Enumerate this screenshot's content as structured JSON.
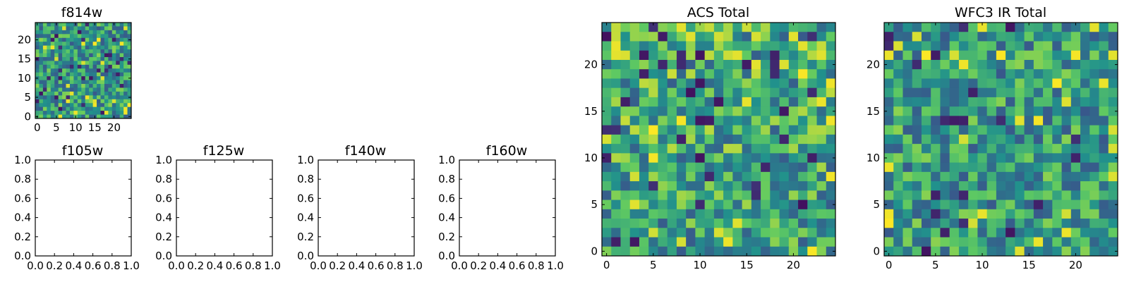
{
  "figure": {
    "panels": [
      {
        "id": "f814w",
        "title": "f814w"
      },
      {
        "id": "f105w",
        "title": "f105w"
      },
      {
        "id": "f125w",
        "title": "f125w"
      },
      {
        "id": "f140w",
        "title": "f140w"
      },
      {
        "id": "f160w",
        "title": "f160w"
      },
      {
        "id": "acs",
        "title": "ACS Total"
      },
      {
        "id": "wfc3",
        "title": "WFC3 IR Total"
      }
    ]
  },
  "chart_data": [
    {
      "type": "heatmap",
      "title": "f814w",
      "grid_size": 25,
      "xlim": [
        -0.5,
        24.5
      ],
      "ylim": [
        -0.5,
        24.5
      ],
      "xticks": [
        "0",
        "5",
        "10",
        "15",
        "20"
      ],
      "yticks": [
        "0",
        "5",
        "10",
        "15",
        "20"
      ],
      "colormap": "viridis",
      "values_note": "random noise"
    },
    {
      "type": "empty",
      "title": "f105w",
      "xlim": [
        0,
        1
      ],
      "ylim": [
        0,
        1
      ],
      "xticks": [
        "0.0",
        "0.2",
        "0.4",
        "0.6",
        "0.8",
        "1.0"
      ],
      "yticks": [
        "0.0",
        "0.2",
        "0.4",
        "0.6",
        "0.8",
        "1.0"
      ]
    },
    {
      "type": "empty",
      "title": "f125w",
      "xlim": [
        0,
        1
      ],
      "ylim": [
        0,
        1
      ],
      "xticks": [
        "0.0",
        "0.2",
        "0.4",
        "0.6",
        "0.8",
        "1.0"
      ],
      "yticks": [
        "0.0",
        "0.2",
        "0.4",
        "0.6",
        "0.8",
        "1.0"
      ]
    },
    {
      "type": "empty",
      "title": "f140w",
      "xlim": [
        0,
        1
      ],
      "ylim": [
        0,
        1
      ],
      "xticks": [
        "0.0",
        "0.2",
        "0.4",
        "0.6",
        "0.8",
        "1.0"
      ],
      "yticks": [
        "0.0",
        "0.2",
        "0.4",
        "0.6",
        "0.8",
        "1.0"
      ]
    },
    {
      "type": "empty",
      "title": "f160w",
      "xlim": [
        0,
        1
      ],
      "ylim": [
        0,
        1
      ],
      "xticks": [
        "0.0",
        "0.2",
        "0.4",
        "0.6",
        "0.8",
        "1.0"
      ],
      "yticks": [
        "0.0",
        "0.2",
        "0.4",
        "0.6",
        "0.8",
        "1.0"
      ]
    },
    {
      "type": "heatmap",
      "title": "ACS Total",
      "grid_size": 25,
      "xlim": [
        -0.5,
        24.5
      ],
      "ylim": [
        -0.5,
        24.5
      ],
      "xticks": [
        "0",
        "5",
        "10",
        "15",
        "20"
      ],
      "yticks": [
        "0",
        "5",
        "10",
        "15",
        "20"
      ],
      "colormap": "viridis"
    },
    {
      "type": "heatmap",
      "title": "WFC3 IR Total",
      "grid_size": 25,
      "xlim": [
        -0.5,
        24.5
      ],
      "ylim": [
        -0.5,
        24.5
      ],
      "xticks": [
        "0",
        "5",
        "10",
        "15",
        "20"
      ],
      "yticks": [
        "0",
        "5",
        "10",
        "15",
        "20"
      ],
      "colormap": "viridis"
    }
  ],
  "colors": {
    "viridis": [
      "#440154",
      "#3b528b",
      "#21918c",
      "#5ec962",
      "#fde725"
    ]
  }
}
